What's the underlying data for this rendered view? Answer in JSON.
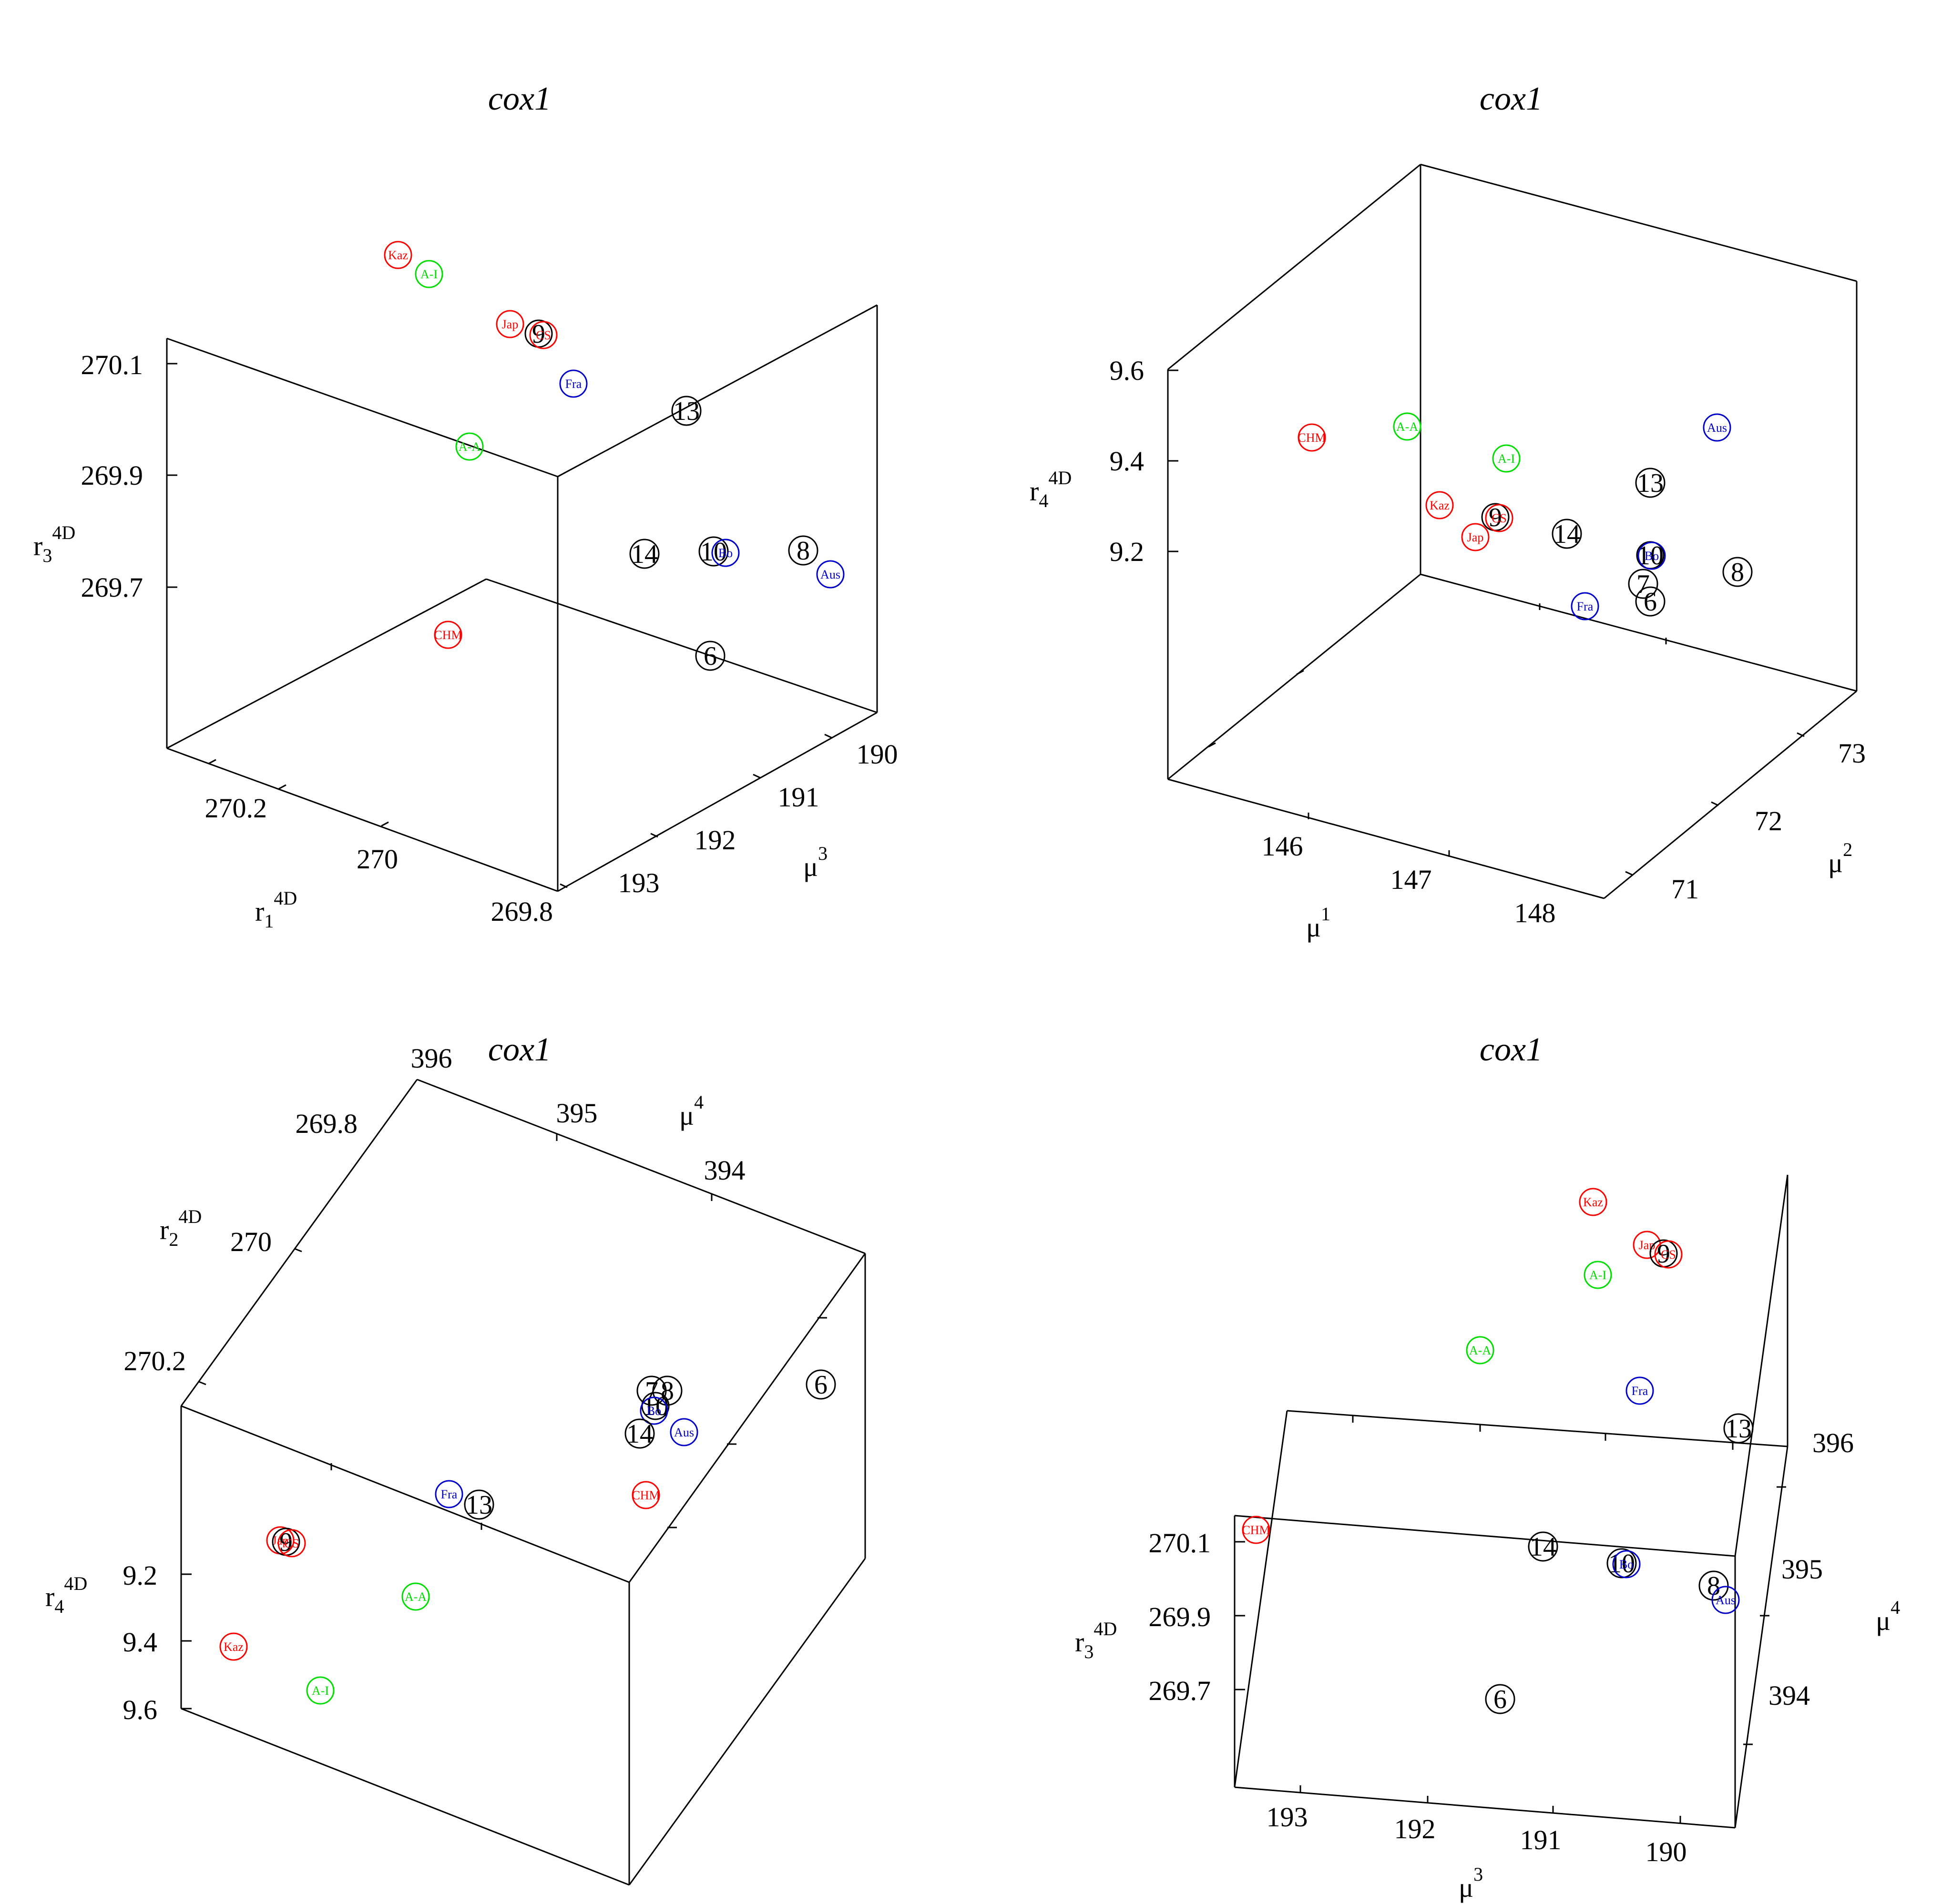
{
  "chart_data": [
    {
      "type": "scatter",
      "title": "cox1",
      "axes": {
        "x": {
          "label": "r",
          "sub": "1",
          "sup": "4D",
          "ticks": [
            "270.2",
            "270",
            "269.8"
          ]
        },
        "y": {
          "label": "μ",
          "sup": "3",
          "ticks": [
            "193",
            "192",
            "191",
            "190"
          ]
        },
        "z": {
          "label": "r",
          "sub": "3",
          "sup": "4D",
          "ticks": [
            "270.1",
            "269.9",
            "269.7"
          ]
        }
      },
      "points": [
        {
          "label": "Kaz",
          "color": "#ff0000"
        },
        {
          "label": "A-I",
          "color": "#00dd00"
        },
        {
          "label": "Jap",
          "color": "#ff0000"
        },
        {
          "label": "9",
          "color": "#000000"
        },
        {
          "label": "CS",
          "color": "#ff0000"
        },
        {
          "label": "Fra",
          "color": "#0000cc"
        },
        {
          "label": "13",
          "color": "#000000"
        },
        {
          "label": "A-A",
          "color": "#00dd00"
        },
        {
          "label": "14",
          "color": "#000000"
        },
        {
          "label": "10",
          "color": "#000000"
        },
        {
          "label": "Bo",
          "color": "#0000cc"
        },
        {
          "label": "8",
          "color": "#000000"
        },
        {
          "label": "Aus",
          "color": "#0000cc"
        },
        {
          "label": "CHM",
          "color": "#ff0000"
        },
        {
          "label": "6",
          "color": "#000000"
        }
      ]
    },
    {
      "type": "scatter",
      "title": "cox1",
      "axes": {
        "x": {
          "label": "μ",
          "sup": "1",
          "ticks": [
            "146",
            "147",
            "148"
          ]
        },
        "y": {
          "label": "μ",
          "sup": "2",
          "ticks": [
            "71",
            "72",
            "73"
          ]
        },
        "z": {
          "label": "r",
          "sub": "4",
          "sup": "4D",
          "ticks": [
            "9.6",
            "9.4",
            "9.2"
          ]
        }
      },
      "points": [
        {
          "label": "CHM",
          "color": "#ff0000"
        },
        {
          "label": "A-A",
          "color": "#00dd00"
        },
        {
          "label": "A-I",
          "color": "#00dd00"
        },
        {
          "label": "Aus",
          "color": "#0000cc"
        },
        {
          "label": "13",
          "color": "#000000"
        },
        {
          "label": "Kaz",
          "color": "#ff0000"
        },
        {
          "label": "9",
          "color": "#000000"
        },
        {
          "label": "CS",
          "color": "#ff0000"
        },
        {
          "label": "Jap",
          "color": "#ff0000"
        },
        {
          "label": "14",
          "color": "#000000"
        },
        {
          "label": "10",
          "color": "#000000"
        },
        {
          "label": "Bo",
          "color": "#0000cc"
        },
        {
          "label": "8",
          "color": "#000000"
        },
        {
          "label": "7",
          "color": "#000000"
        },
        {
          "label": "Fra",
          "color": "#0000cc"
        },
        {
          "label": "6",
          "color": "#000000"
        }
      ]
    },
    {
      "type": "scatter",
      "title": "cox1",
      "axes": {
        "x": {
          "label": "μ",
          "sup": "4",
          "ticks": [
            "396",
            "395",
            "394"
          ]
        },
        "y": {
          "label": "r",
          "sub": "2",
          "sup": "4D",
          "ticks": [
            "269.8",
            "270",
            "270.2"
          ]
        },
        "z": {
          "label": "r",
          "sub": "4",
          "sup": "4D",
          "ticks": [
            "9.2",
            "9.4",
            "9.6"
          ]
        }
      },
      "points": [
        {
          "label": "7",
          "color": "#000000"
        },
        {
          "label": "8",
          "color": "#000000"
        },
        {
          "label": "10",
          "color": "#000000"
        },
        {
          "label": "Bo",
          "color": "#0000cc"
        },
        {
          "label": "14",
          "color": "#000000"
        },
        {
          "label": "Aus",
          "color": "#0000cc"
        },
        {
          "label": "6",
          "color": "#000000"
        },
        {
          "label": "CHM",
          "color": "#ff0000"
        },
        {
          "label": "Fra",
          "color": "#0000cc"
        },
        {
          "label": "13",
          "color": "#000000"
        },
        {
          "label": "Jap",
          "color": "#ff0000"
        },
        {
          "label": "9",
          "color": "#000000"
        },
        {
          "label": "CS",
          "color": "#ff0000"
        },
        {
          "label": "A-A",
          "color": "#00dd00"
        },
        {
          "label": "Kaz",
          "color": "#ff0000"
        },
        {
          "label": "A-I",
          "color": "#00dd00"
        }
      ]
    },
    {
      "type": "scatter",
      "title": "cox1",
      "axes": {
        "x": {
          "label": "μ",
          "sup": "3",
          "ticks": [
            "193",
            "192",
            "191",
            "190"
          ]
        },
        "y": {
          "label": "μ",
          "sup": "4",
          "ticks": [
            "396",
            "395",
            "394"
          ]
        },
        "z": {
          "label": "r",
          "sub": "3",
          "sup": "4D",
          "ticks": [
            "270.1",
            "269.9",
            "269.7"
          ]
        }
      },
      "points": [
        {
          "label": "Kaz",
          "color": "#ff0000"
        },
        {
          "label": "Jap",
          "color": "#ff0000"
        },
        {
          "label": "9",
          "color": "#000000"
        },
        {
          "label": "CS",
          "color": "#ff0000"
        },
        {
          "label": "A-I",
          "color": "#00dd00"
        },
        {
          "label": "A-A",
          "color": "#00dd00"
        },
        {
          "label": "Fra",
          "color": "#0000cc"
        },
        {
          "label": "13",
          "color": "#000000"
        },
        {
          "label": "CHM",
          "color": "#ff0000"
        },
        {
          "label": "14",
          "color": "#000000"
        },
        {
          "label": "10",
          "color": "#000000"
        },
        {
          "label": "Bo",
          "color": "#0000cc"
        },
        {
          "label": "8",
          "color": "#000000"
        },
        {
          "label": "Aus",
          "color": "#0000cc"
        },
        {
          "label": "6",
          "color": "#000000"
        }
      ]
    }
  ]
}
